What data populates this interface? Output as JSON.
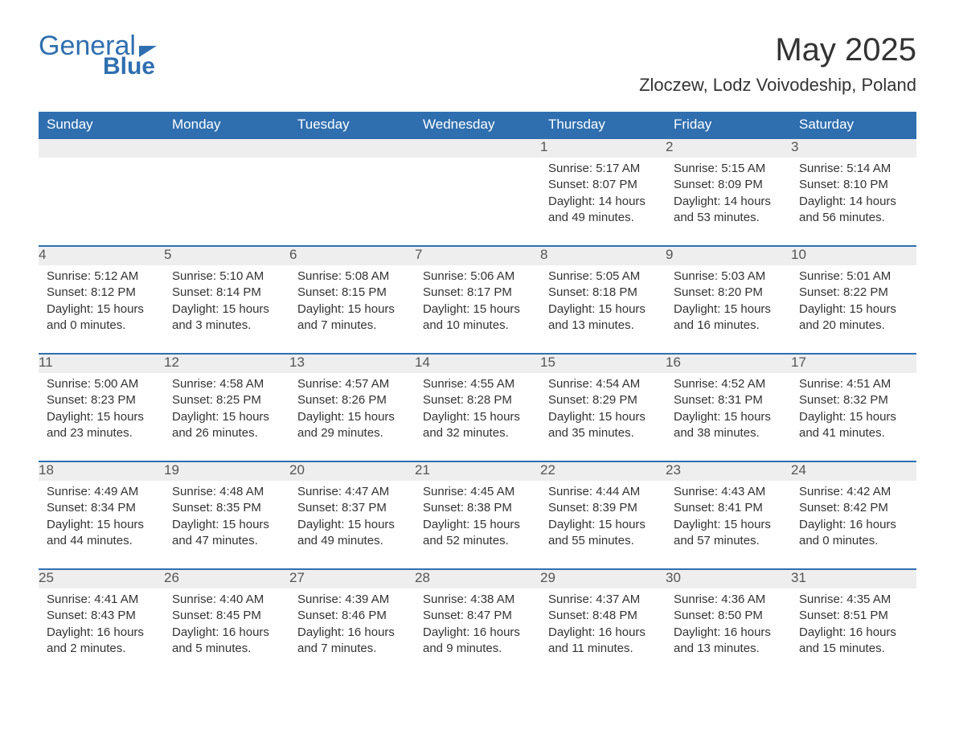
{
  "logo": {
    "text_general": "General",
    "text_blue": "Blue"
  },
  "title": "May 2025",
  "location": "Zloczew, Lodz Voivodeship, Poland",
  "colors": {
    "header_bg": "#2f6fb0",
    "header_text": "#ffffff",
    "daynum_bg": "#eeeeee",
    "rule": "#2f6fb0",
    "body_text": "#333333",
    "background": "#ffffff"
  },
  "fonts": {
    "title_size_pt": 30,
    "location_size_pt": 16,
    "header_size_pt": 13,
    "cell_size_pt": 11
  },
  "day_headers": [
    "Sunday",
    "Monday",
    "Tuesday",
    "Wednesday",
    "Thursday",
    "Friday",
    "Saturday"
  ],
  "weeks": [
    [
      null,
      null,
      null,
      null,
      {
        "n": "1",
        "sunrise": "5:17 AM",
        "sunset": "8:07 PM",
        "daylight": "14 hours and 49 minutes."
      },
      {
        "n": "2",
        "sunrise": "5:15 AM",
        "sunset": "8:09 PM",
        "daylight": "14 hours and 53 minutes."
      },
      {
        "n": "3",
        "sunrise": "5:14 AM",
        "sunset": "8:10 PM",
        "daylight": "14 hours and 56 minutes."
      }
    ],
    [
      {
        "n": "4",
        "sunrise": "5:12 AM",
        "sunset": "8:12 PM",
        "daylight": "15 hours and 0 minutes."
      },
      {
        "n": "5",
        "sunrise": "5:10 AM",
        "sunset": "8:14 PM",
        "daylight": "15 hours and 3 minutes."
      },
      {
        "n": "6",
        "sunrise": "5:08 AM",
        "sunset": "8:15 PM",
        "daylight": "15 hours and 7 minutes."
      },
      {
        "n": "7",
        "sunrise": "5:06 AM",
        "sunset": "8:17 PM",
        "daylight": "15 hours and 10 minutes."
      },
      {
        "n": "8",
        "sunrise": "5:05 AM",
        "sunset": "8:18 PM",
        "daylight": "15 hours and 13 minutes."
      },
      {
        "n": "9",
        "sunrise": "5:03 AM",
        "sunset": "8:20 PM",
        "daylight": "15 hours and 16 minutes."
      },
      {
        "n": "10",
        "sunrise": "5:01 AM",
        "sunset": "8:22 PM",
        "daylight": "15 hours and 20 minutes."
      }
    ],
    [
      {
        "n": "11",
        "sunrise": "5:00 AM",
        "sunset": "8:23 PM",
        "daylight": "15 hours and 23 minutes."
      },
      {
        "n": "12",
        "sunrise": "4:58 AM",
        "sunset": "8:25 PM",
        "daylight": "15 hours and 26 minutes."
      },
      {
        "n": "13",
        "sunrise": "4:57 AM",
        "sunset": "8:26 PM",
        "daylight": "15 hours and 29 minutes."
      },
      {
        "n": "14",
        "sunrise": "4:55 AM",
        "sunset": "8:28 PM",
        "daylight": "15 hours and 32 minutes."
      },
      {
        "n": "15",
        "sunrise": "4:54 AM",
        "sunset": "8:29 PM",
        "daylight": "15 hours and 35 minutes."
      },
      {
        "n": "16",
        "sunrise": "4:52 AM",
        "sunset": "8:31 PM",
        "daylight": "15 hours and 38 minutes."
      },
      {
        "n": "17",
        "sunrise": "4:51 AM",
        "sunset": "8:32 PM",
        "daylight": "15 hours and 41 minutes."
      }
    ],
    [
      {
        "n": "18",
        "sunrise": "4:49 AM",
        "sunset": "8:34 PM",
        "daylight": "15 hours and 44 minutes."
      },
      {
        "n": "19",
        "sunrise": "4:48 AM",
        "sunset": "8:35 PM",
        "daylight": "15 hours and 47 minutes."
      },
      {
        "n": "20",
        "sunrise": "4:47 AM",
        "sunset": "8:37 PM",
        "daylight": "15 hours and 49 minutes."
      },
      {
        "n": "21",
        "sunrise": "4:45 AM",
        "sunset": "8:38 PM",
        "daylight": "15 hours and 52 minutes."
      },
      {
        "n": "22",
        "sunrise": "4:44 AM",
        "sunset": "8:39 PM",
        "daylight": "15 hours and 55 minutes."
      },
      {
        "n": "23",
        "sunrise": "4:43 AM",
        "sunset": "8:41 PM",
        "daylight": "15 hours and 57 minutes."
      },
      {
        "n": "24",
        "sunrise": "4:42 AM",
        "sunset": "8:42 PM",
        "daylight": "16 hours and 0 minutes."
      }
    ],
    [
      {
        "n": "25",
        "sunrise": "4:41 AM",
        "sunset": "8:43 PM",
        "daylight": "16 hours and 2 minutes."
      },
      {
        "n": "26",
        "sunrise": "4:40 AM",
        "sunset": "8:45 PM",
        "daylight": "16 hours and 5 minutes."
      },
      {
        "n": "27",
        "sunrise": "4:39 AM",
        "sunset": "8:46 PM",
        "daylight": "16 hours and 7 minutes."
      },
      {
        "n": "28",
        "sunrise": "4:38 AM",
        "sunset": "8:47 PM",
        "daylight": "16 hours and 9 minutes."
      },
      {
        "n": "29",
        "sunrise": "4:37 AM",
        "sunset": "8:48 PM",
        "daylight": "16 hours and 11 minutes."
      },
      {
        "n": "30",
        "sunrise": "4:36 AM",
        "sunset": "8:50 PM",
        "daylight": "16 hours and 13 minutes."
      },
      {
        "n": "31",
        "sunrise": "4:35 AM",
        "sunset": "8:51 PM",
        "daylight": "16 hours and 15 minutes."
      }
    ]
  ],
  "labels": {
    "sunrise": "Sunrise:",
    "sunset": "Sunset:",
    "daylight": "Daylight:"
  }
}
